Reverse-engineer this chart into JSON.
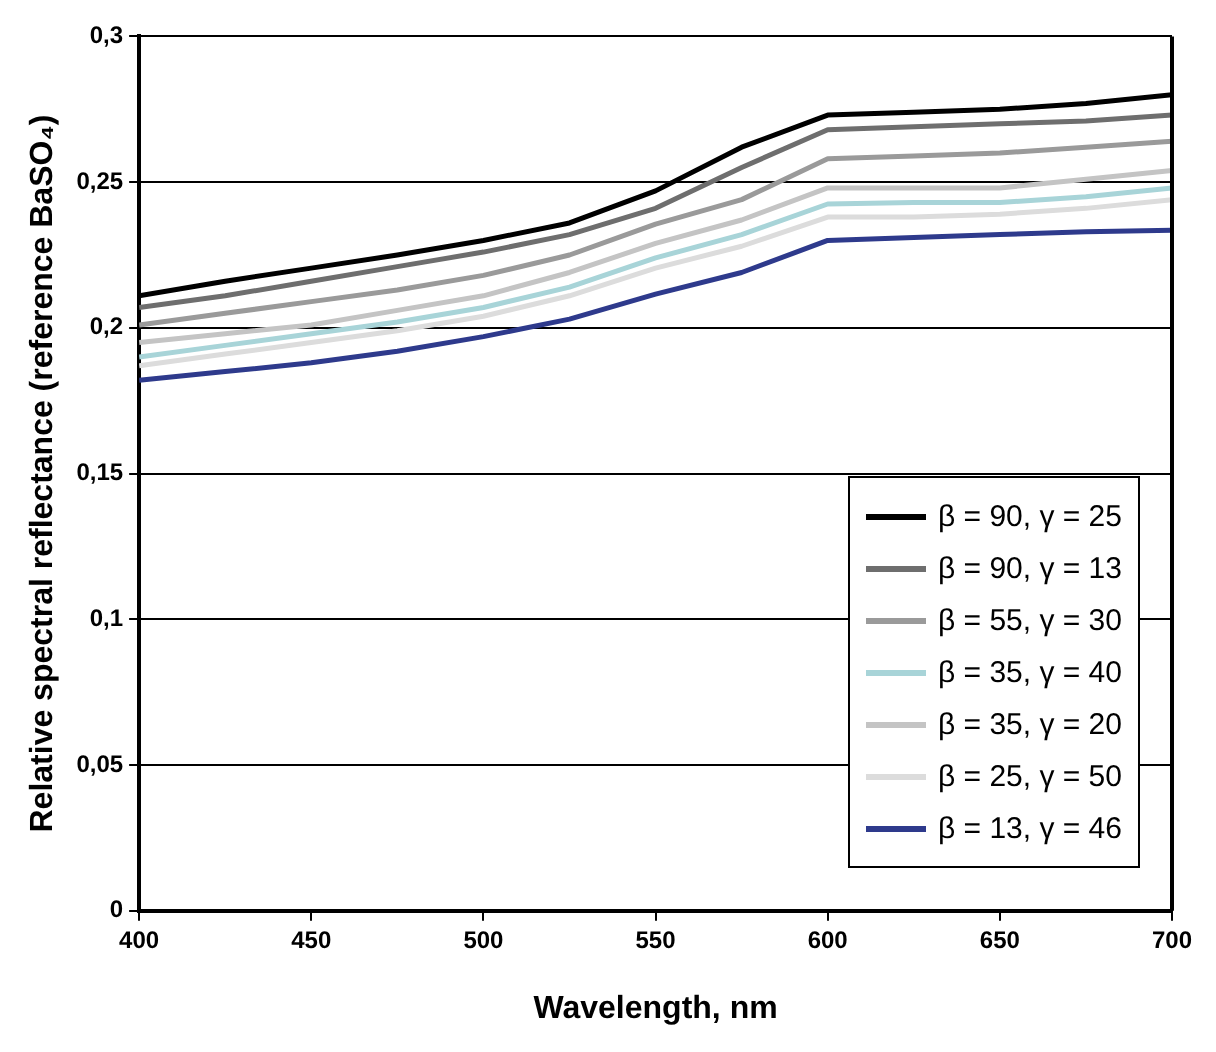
{
  "chart_data": {
    "type": "line",
    "xlabel": "Wavelength, nm",
    "ylabel": "Relative spectral reflectance (reference BaSO₄)",
    "x": [
      400,
      425,
      450,
      475,
      500,
      525,
      550,
      575,
      600,
      625,
      650,
      675,
      700
    ],
    "series": [
      {
        "name": "β = 90, γ = 25",
        "color": "#000000",
        "values": [
          0.211,
          0.216,
          0.2205,
          0.225,
          0.23,
          0.236,
          0.247,
          0.262,
          0.273,
          0.274,
          0.275,
          0.277,
          0.28
        ]
      },
      {
        "name": "β = 90, γ = 13",
        "color": "#6e6e6e",
        "values": [
          0.207,
          0.211,
          0.216,
          0.221,
          0.226,
          0.232,
          0.241,
          0.255,
          0.268,
          0.269,
          0.27,
          0.271,
          0.273
        ]
      },
      {
        "name": "β = 55, γ = 30",
        "color": "#9a9a9a",
        "values": [
          0.201,
          0.205,
          0.209,
          0.213,
          0.218,
          0.225,
          0.2356,
          0.244,
          0.258,
          0.259,
          0.26,
          0.262,
          0.264
        ]
      },
      {
        "name": "β = 35, γ = 40",
        "color": "#a8d4d8",
        "values": [
          0.19,
          0.194,
          0.198,
          0.202,
          0.207,
          0.214,
          0.224,
          0.232,
          0.2425,
          0.243,
          0.243,
          0.245,
          0.248
        ]
      },
      {
        "name": "β = 35, γ = 20",
        "color": "#c4c4c4",
        "values": [
          0.195,
          0.198,
          0.201,
          0.206,
          0.211,
          0.219,
          0.229,
          0.237,
          0.248,
          0.248,
          0.248,
          0.251,
          0.254
        ]
      },
      {
        "name": "β = 25, γ = 50",
        "color": "#dcdcdc",
        "values": [
          0.187,
          0.191,
          0.195,
          0.199,
          0.204,
          0.211,
          0.2205,
          0.228,
          0.238,
          0.238,
          0.239,
          0.241,
          0.244
        ]
      },
      {
        "name": "β = 13, γ = 46",
        "color": "#2e3a8c",
        "values": [
          0.182,
          0.185,
          0.188,
          0.192,
          0.197,
          0.203,
          0.2116,
          0.219,
          0.23,
          0.231,
          0.232,
          0.233,
          0.2335
        ]
      }
    ],
    "xlim": [
      400,
      700
    ],
    "xticks": [
      400,
      450,
      500,
      550,
      600,
      650,
      700
    ],
    "ylim": [
      0,
      0.3
    ],
    "yticks": [
      {
        "value": 0,
        "label": "0"
      },
      {
        "value": 0.05,
        "label": "0,05"
      },
      {
        "value": 0.1,
        "label": "0,1"
      },
      {
        "value": 0.15,
        "label": "0,15"
      },
      {
        "value": 0.2,
        "label": "0,2"
      },
      {
        "value": 0.25,
        "label": "0,25"
      },
      {
        "value": 0.3,
        "label": "0,3"
      }
    ],
    "grid": "y",
    "legend": "bottom right",
    "marker": "none",
    "line_style": "solid"
  }
}
